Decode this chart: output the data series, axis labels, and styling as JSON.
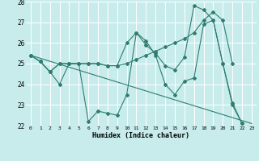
{
  "xlabel": "Humidex (Indice chaleur)",
  "background_color": "#c8ecec",
  "line_color": "#2e7d70",
  "line1_x": [
    0,
    1,
    2,
    3,
    4,
    5,
    6,
    7,
    8,
    9,
    10,
    11,
    12,
    13,
    14,
    15,
    16,
    17,
    18,
    19,
    20,
    21,
    22
  ],
  "line1_y": [
    25.4,
    25.1,
    24.6,
    24.0,
    25.0,
    25.0,
    22.2,
    22.7,
    22.6,
    22.5,
    23.5,
    26.5,
    26.1,
    25.4,
    24.0,
    23.5,
    24.15,
    24.3,
    26.9,
    27.1,
    25.0,
    23.1,
    22.1
  ],
  "line2_x": [
    0,
    1,
    2,
    3,
    4,
    5,
    6,
    7,
    8,
    9,
    10,
    11,
    12,
    13,
    14,
    15,
    16,
    17,
    18,
    19,
    20,
    21
  ],
  "line2_y": [
    25.4,
    25.1,
    24.6,
    25.0,
    25.0,
    25.0,
    25.0,
    25.0,
    24.9,
    24.9,
    25.0,
    25.2,
    25.4,
    25.6,
    25.8,
    26.0,
    26.2,
    26.5,
    27.1,
    27.5,
    27.1,
    25.0
  ],
  "line3_x": [
    0,
    1,
    2,
    3,
    4,
    5,
    6,
    7,
    8,
    9,
    10,
    11,
    12,
    13,
    14,
    15,
    16,
    17,
    18,
    19,
    20,
    21,
    22
  ],
  "line3_y": [
    25.4,
    25.1,
    24.6,
    25.0,
    25.0,
    25.0,
    25.0,
    25.0,
    24.9,
    24.9,
    26.0,
    26.5,
    25.9,
    25.5,
    24.9,
    24.7,
    25.3,
    27.8,
    27.6,
    27.1,
    25.0,
    23.0,
    22.1
  ],
  "line4_x": [
    0,
    23
  ],
  "line4_y": [
    25.4,
    22.1
  ],
  "ylim": [
    22,
    28
  ],
  "xlim": [
    -0.5,
    23.5
  ],
  "yticks": [
    22,
    23,
    24,
    25,
    26,
    27,
    28
  ],
  "xticks": [
    0,
    1,
    2,
    3,
    4,
    5,
    6,
    7,
    8,
    9,
    10,
    11,
    12,
    13,
    14,
    15,
    16,
    17,
    18,
    19,
    20,
    21,
    22,
    23
  ]
}
